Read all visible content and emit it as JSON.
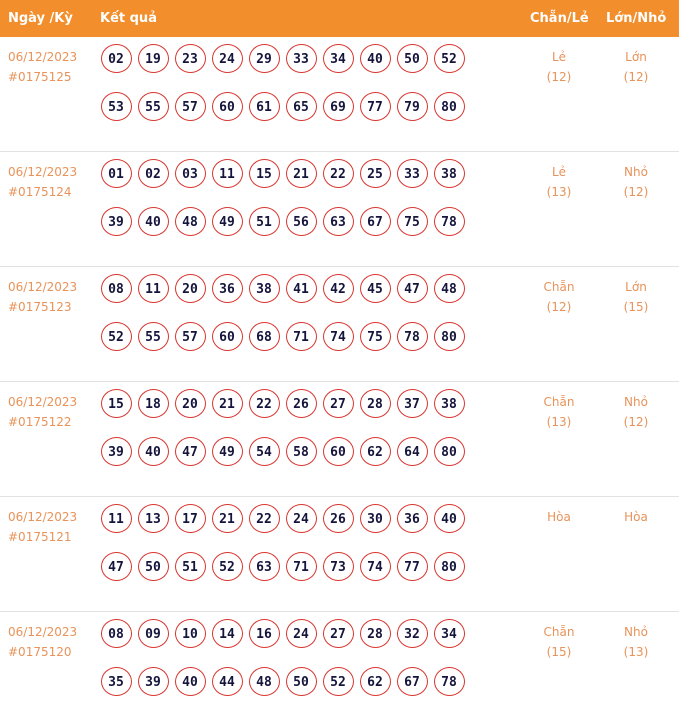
{
  "header": {
    "date_col": "Ngày /Kỳ",
    "result_col": "Kết quả",
    "parity_col": "Chẵn/Lẻ",
    "size_col": "Lớn/Nhỏ"
  },
  "colors": {
    "header_bg": "#f28e2b",
    "accent_text": "#e8935a",
    "ball_border": "#d9352f"
  },
  "draws": [
    {
      "date": "06/12/2023",
      "id": "#0175125",
      "numbers": [
        "02",
        "19",
        "23",
        "24",
        "29",
        "33",
        "34",
        "40",
        "50",
        "52",
        "53",
        "55",
        "57",
        "60",
        "61",
        "65",
        "69",
        "77",
        "79",
        "80"
      ],
      "parity": "Lẻ",
      "parity_count": "(12)",
      "size": "Lớn",
      "size_count": "(12)"
    },
    {
      "date": "06/12/2023",
      "id": "#0175124",
      "numbers": [
        "01",
        "02",
        "03",
        "11",
        "15",
        "21",
        "22",
        "25",
        "33",
        "38",
        "39",
        "40",
        "48",
        "49",
        "51",
        "56",
        "63",
        "67",
        "75",
        "78"
      ],
      "parity": "Lẻ",
      "parity_count": "(13)",
      "size": "Nhỏ",
      "size_count": "(12)"
    },
    {
      "date": "06/12/2023",
      "id": "#0175123",
      "numbers": [
        "08",
        "11",
        "20",
        "36",
        "38",
        "41",
        "42",
        "45",
        "47",
        "48",
        "52",
        "55",
        "57",
        "60",
        "68",
        "71",
        "74",
        "75",
        "78",
        "80"
      ],
      "parity": "Chẵn",
      "parity_count": "(12)",
      "size": "Lớn",
      "size_count": "(15)"
    },
    {
      "date": "06/12/2023",
      "id": "#0175122",
      "numbers": [
        "15",
        "18",
        "20",
        "21",
        "22",
        "26",
        "27",
        "28",
        "37",
        "38",
        "39",
        "40",
        "47",
        "49",
        "54",
        "58",
        "60",
        "62",
        "64",
        "80"
      ],
      "parity": "Chẵn",
      "parity_count": "(13)",
      "size": "Nhỏ",
      "size_count": "(12)"
    },
    {
      "date": "06/12/2023",
      "id": "#0175121",
      "numbers": [
        "11",
        "13",
        "17",
        "21",
        "22",
        "24",
        "26",
        "30",
        "36",
        "40",
        "47",
        "50",
        "51",
        "52",
        "63",
        "71",
        "73",
        "74",
        "77",
        "80"
      ],
      "parity": "Hòa",
      "parity_count": "",
      "size": "Hòa",
      "size_count": ""
    },
    {
      "date": "06/12/2023",
      "id": "#0175120",
      "numbers": [
        "08",
        "09",
        "10",
        "14",
        "16",
        "24",
        "27",
        "28",
        "32",
        "34",
        "35",
        "39",
        "40",
        "44",
        "48",
        "50",
        "52",
        "62",
        "67",
        "78"
      ],
      "parity": "Chẵn",
      "parity_count": "(15)",
      "size": "Nhỏ",
      "size_count": "(13)"
    }
  ]
}
